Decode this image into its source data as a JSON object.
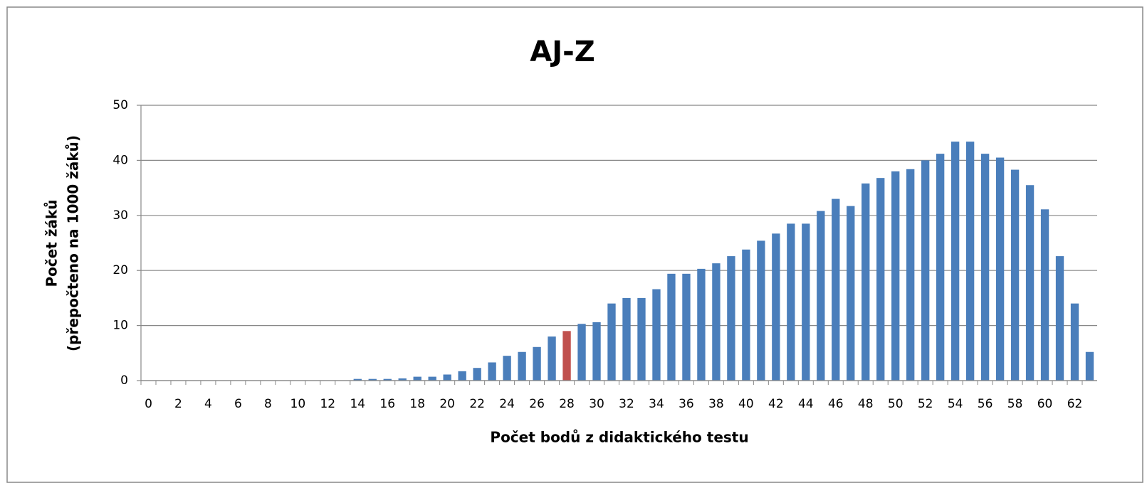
{
  "chart_data": {
    "type": "bar",
    "title": "AJ-Z",
    "x_label": "Počet bodů z didaktického testu",
    "y_label": [
      "Počet žáků",
      "(přepočteno na 1000 žáků)"
    ],
    "categories": [
      0,
      null,
      2,
      null,
      4,
      null,
      6,
      null,
      8,
      null,
      10,
      null,
      12,
      null,
      14,
      null,
      16,
      null,
      18,
      null,
      20,
      null,
      22,
      null,
      24,
      null,
      26,
      null,
      28,
      null,
      30,
      null,
      32,
      null,
      34,
      null,
      36,
      null,
      38,
      null,
      40,
      null,
      42,
      null,
      44,
      null,
      46,
      null,
      48,
      null,
      50,
      null,
      52,
      null,
      54,
      null,
      56,
      null,
      58,
      null,
      60,
      null,
      62,
      null
    ],
    "values": [
      0,
      0,
      0,
      0,
      0,
      0,
      0,
      0,
      0,
      0,
      0,
      0,
      0,
      0,
      0.3,
      0.3,
      0.3,
      0.4,
      0.7,
      0.7,
      1.1,
      1.7,
      2.3,
      3.3,
      4.5,
      5.2,
      6.1,
      8.0,
      9.0,
      10.3,
      10.6,
      14.0,
      15.0,
      15.0,
      16.6,
      19.4,
      19.4,
      20.3,
      21.3,
      22.6,
      23.8,
      25.4,
      26.7,
      28.5,
      28.5,
      30.8,
      33.0,
      31.7,
      35.8,
      36.8,
      38.0,
      38.4,
      40.0,
      41.2,
      43.4,
      43.4,
      41.2,
      40.5,
      38.3,
      35.5,
      31.1,
      22.6,
      14.0,
      5.2
    ],
    "color": "#4a7ebb",
    "highlight": {
      "category": 28,
      "color": "#c0504d"
    },
    "ylim": [
      0,
      50
    ],
    "yticks": [
      0,
      10,
      20,
      30,
      40,
      50
    ],
    "grid": true
  }
}
